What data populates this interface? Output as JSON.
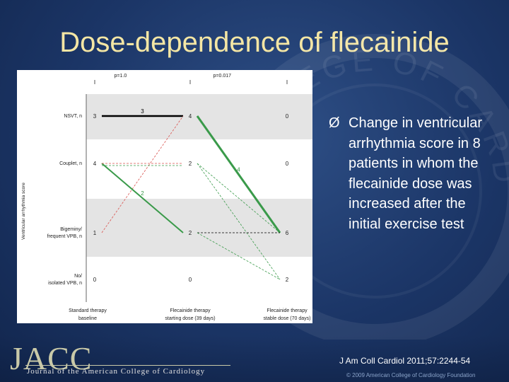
{
  "slide": {
    "title": "Dose-dependence of flecainide",
    "bullet_marker": "Ø",
    "bullet_text": "Change in ventricular arrhythmia score in 8 patients in whom the flecainide dose was increased after the initial exercise test",
    "citation": "J Am Coll Cardiol 2011;57:2244-54",
    "copyright": "© 2009 American College of Cardiology Foundation",
    "logo_text": "JACC",
    "journal_name": "Journal of the American College of Cardiology",
    "seal_text": "COLLEGE OF CARDIOLOGY"
  },
  "chart_data": {
    "type": "line",
    "ylabel": "Ventricular arrhythmia score",
    "categories": [
      "Standard therapy baseline",
      "Flecainide therapy starting dose (39 days)",
      "Flecainide therapy stable dose (70 days)"
    ],
    "category_lines": [
      [
        "Standard therapy",
        "baseline"
      ],
      [
        "Flecainide therapy",
        "starting dose (39 days)"
      ],
      [
        "Flecainide therapy",
        "stable dose (70 days)"
      ]
    ],
    "levels": [
      "NSVT, n",
      "Couplet, n",
      "Bigeminy/ frequent VPB, n",
      "No/ isolated VPB, n"
    ],
    "level_lines": [
      [
        "NSVT, n"
      ],
      [
        "Couplet, n"
      ],
      [
        "Bigeminy/",
        "frequent VPB, n"
      ],
      [
        "No/",
        "isolated VPB, n"
      ]
    ],
    "counts": [
      [
        3,
        4,
        0
      ],
      [
        4,
        2,
        0
      ],
      [
        1,
        2,
        6
      ],
      [
        0,
        0,
        2
      ]
    ],
    "p_values": [
      "p=1.0",
      "p=0.017"
    ],
    "transitions": [
      {
        "from": [
          0,
          0
        ],
        "to": [
          0,
          1
        ],
        "n": 3,
        "style": "solid",
        "color": "#000000",
        "label": "3"
      },
      {
        "from": [
          2,
          0
        ],
        "to": [
          0,
          1
        ],
        "n": 1,
        "style": "dashed",
        "color": "#d9534f",
        "label": ""
      },
      {
        "from": [
          1,
          0
        ],
        "to": [
          2,
          1
        ],
        "n": 2,
        "style": "solid",
        "color": "#3a9a4a",
        "label": "2"
      },
      {
        "from": [
          1,
          0
        ],
        "to": [
          1,
          1
        ],
        "n": 1,
        "style": "dashed",
        "color": "#d9534f",
        "label": ""
      },
      {
        "from": [
          1,
          0
        ],
        "to": [
          1,
          1
        ],
        "n": 1,
        "style": "dashed",
        "color": "#3a9a4a",
        "label": ""
      },
      {
        "from": [
          0,
          1
        ],
        "to": [
          2,
          2
        ],
        "n": 4,
        "style": "solid",
        "color": "#3a9a4a",
        "label": "4"
      },
      {
        "from": [
          1,
          1
        ],
        "to": [
          3,
          2
        ],
        "n": 1,
        "style": "dashed",
        "color": "#3a9a4a",
        "label": ""
      },
      {
        "from": [
          1,
          1
        ],
        "to": [
          2,
          2
        ],
        "n": 1,
        "style": "dashed",
        "color": "#3a9a4a",
        "label": ""
      },
      {
        "from": [
          2,
          1
        ],
        "to": [
          2,
          2
        ],
        "n": 1,
        "style": "dashed",
        "color": "#000000",
        "label": ""
      },
      {
        "from": [
          2,
          1
        ],
        "to": [
          3,
          2
        ],
        "n": 1,
        "style": "dashed",
        "color": "#3a9a4a",
        "label": ""
      }
    ],
    "band_colors": [
      "#e4e4e4",
      "#ffffff",
      "#e4e4e4",
      "#ffffff"
    ]
  }
}
